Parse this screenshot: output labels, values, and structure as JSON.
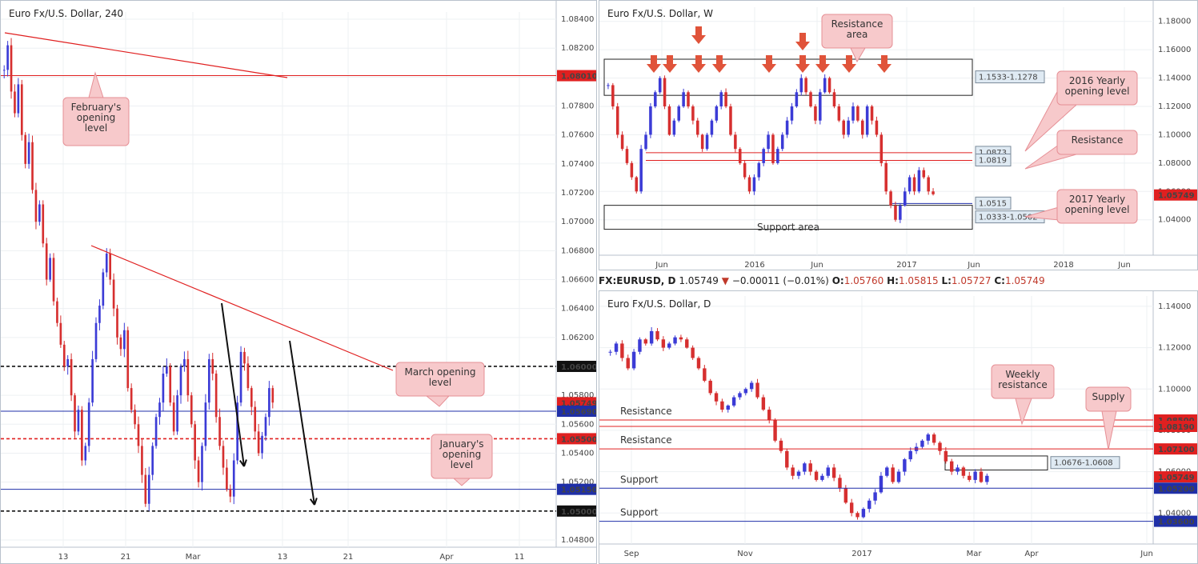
{
  "colors": {
    "bull": "#3b3bd6",
    "bear": "#d62f2f",
    "red_line": "#e02020",
    "blue_line": "#1f2fa8",
    "callout_fill": "#f7c9cb",
    "callout_stroke": "#e69096",
    "zone_fill": "#dfeaf3",
    "grid": "#edf0f3"
  },
  "infobar": {
    "symbol": "FX:EURUSD, D",
    "last": "1.05749",
    "change_arrow": "▼",
    "change": "−0.00011 (−0.01%)",
    "o_label": "O:",
    "o": "1.05760",
    "h_label": "H:",
    "h": "1.05815",
    "l_label": "L:",
    "l": "1.05727",
    "c_label": "C:",
    "c": "1.05749"
  },
  "chart_data": [
    {
      "id": "h4",
      "type": "candlestick",
      "title": "Euro Fx/U.S. Dollar, 240",
      "ylim": [
        1.0475,
        1.0845
      ],
      "y_ticks": [
        "1.08400",
        "1.08200",
        "1.08000",
        "1.07800",
        "1.07600",
        "1.07400",
        "1.07200",
        "1.07000",
        "1.06800",
        "1.06600",
        "1.06400",
        "1.06200",
        "1.06000",
        "1.05800",
        "1.05600",
        "1.05400",
        "1.05200",
        "1.05000",
        "1.04800"
      ],
      "x_ticks": [
        "13",
        "21",
        "Mar",
        "13",
        "21",
        "Apr",
        "11"
      ],
      "price_tags": [
        {
          "label": "1.08010",
          "value": 1.0801,
          "color": "#e02020"
        },
        {
          "label": "1.06000",
          "value": 1.06,
          "color": "#111111"
        },
        {
          "label": "1.05749",
          "value": 1.05749,
          "color": "#e02020"
        },
        {
          "label": "1.05690",
          "value": 1.0569,
          "color": "#1f2fa8"
        },
        {
          "label": "1.05500",
          "value": 1.055,
          "color": "#e02020"
        },
        {
          "label": "1.05150",
          "value": 1.0515,
          "color": "#1f2fa8"
        },
        {
          "label": "1.05000",
          "value": 1.05,
          "color": "#111111"
        }
      ],
      "levels": [
        {
          "value": 1.0801,
          "style": "solid",
          "color": "#e02020"
        },
        {
          "value": 1.06,
          "style": "dashed",
          "color": "#111111"
        },
        {
          "value": 1.0569,
          "style": "solid",
          "color": "#1f2fa8"
        },
        {
          "value": 1.055,
          "style": "dashed",
          "color": "#e02020"
        },
        {
          "value": 1.0515,
          "style": "solid",
          "color": "#1f2fa8"
        },
        {
          "value": 1.05,
          "style": "dashed",
          "color": "#111111"
        }
      ],
      "callouts": [
        "February's opening level",
        "March opening level",
        "January's opening level"
      ],
      "series": [
        1.0805,
        1.0822,
        1.079,
        1.0775,
        1.0795,
        1.076,
        1.074,
        1.0755,
        1.0722,
        1.07,
        1.0712,
        1.0685,
        1.066,
        1.0675,
        1.0645,
        1.063,
        1.0615,
        1.06,
        1.0605,
        1.058,
        1.0555,
        1.057,
        1.0535,
        1.0545,
        1.0575,
        1.0605,
        1.063,
        1.0642,
        1.0665,
        1.0678,
        1.066,
        1.064,
        1.062,
        1.0612,
        1.0625,
        1.0585,
        1.057,
        1.056,
        1.0545,
        1.0525,
        1.0505,
        1.0525,
        1.0545,
        1.0565,
        1.0575,
        1.0595,
        1.06,
        1.0575,
        1.0555,
        1.058,
        1.06,
        1.0605,
        1.058,
        1.056,
        1.0535,
        1.052,
        1.0545,
        1.0575,
        1.0605,
        1.0595,
        1.0565,
        1.0545,
        1.053,
        1.0515,
        1.051,
        1.0535,
        1.0575,
        1.061,
        1.0602,
        1.0585,
        1.0572,
        1.0555,
        1.054,
        1.0552,
        1.0565,
        1.0585,
        1.0575
      ],
      "annotations": [
        "Feb opening level",
        "trend line",
        "projection arrows"
      ]
    },
    {
      "id": "weekly",
      "type": "candlestick",
      "title": "Euro Fx/U.S. Dollar, W",
      "ylim": [
        1.015,
        1.19
      ],
      "y_ticks": [
        "1.18000",
        "1.16000",
        "1.14000",
        "1.12000",
        "1.10000",
        "1.08000",
        "1.06000",
        "1.04000"
      ],
      "x_ticks": [
        "Jun",
        "2016",
        "Jun",
        "2017",
        "Jun",
        "2018",
        "Jun"
      ],
      "price_tags": [
        {
          "label": "1.05749",
          "value": 1.05749,
          "color": "#e02020"
        }
      ],
      "zones": [
        {
          "label": "1.1533-1.1278",
          "high": 1.1533,
          "low": 1.1278
        },
        {
          "label": "1.0333-1.0502",
          "high": 1.0502,
          "low": 1.0333
        }
      ],
      "levels": [
        {
          "label": "1.0873",
          "value": 1.0873
        },
        {
          "label": "1.0819",
          "value": 1.0819
        },
        {
          "label": "1.0515",
          "value": 1.0515
        }
      ],
      "texts": [
        "Support area"
      ],
      "callouts": [
        "Resistance area",
        "2016 Yearly opening level",
        "Resistance",
        "2017 Yearly opening level"
      ],
      "series": [
        1.135,
        1.12,
        1.1,
        1.09,
        1.08,
        1.07,
        1.06,
        1.09,
        1.1,
        1.12,
        1.13,
        1.14,
        1.12,
        1.1,
        1.11,
        1.12,
        1.13,
        1.12,
        1.11,
        1.1,
        1.09,
        1.1,
        1.11,
        1.12,
        1.13,
        1.12,
        1.1,
        1.09,
        1.08,
        1.07,
        1.06,
        1.07,
        1.08,
        1.09,
        1.1,
        1.08,
        1.09,
        1.1,
        1.11,
        1.12,
        1.13,
        1.14,
        1.13,
        1.12,
        1.11,
        1.13,
        1.14,
        1.13,
        1.12,
        1.11,
        1.1,
        1.11,
        1.12,
        1.11,
        1.1,
        1.12,
        1.11,
        1.1,
        1.08,
        1.06,
        1.05,
        1.04,
        1.05,
        1.06,
        1.07,
        1.06,
        1.075,
        1.07,
        1.06,
        1.058
      ],
      "arrows": 10
    },
    {
      "id": "daily",
      "type": "candlestick",
      "title": "Euro Fx/U.S. Dollar, D",
      "ylim": [
        1.025,
        1.145
      ],
      "y_ticks": [
        "1.14000",
        "1.12000",
        "1.10000",
        "1.08000",
        "1.06000",
        "1.04000"
      ],
      "x_ticks": [
        "Sep",
        "Nov",
        "2017",
        "Mar",
        "Apr",
        "Jun"
      ],
      "price_tags": [
        {
          "label": "1.08500",
          "value": 1.085,
          "color": "#e02020"
        },
        {
          "label": "1.08190",
          "value": 1.0819,
          "color": "#e02020"
        },
        {
          "label": "1.07100",
          "value": 1.071,
          "color": "#e02020"
        },
        {
          "label": "1.05749",
          "value": 1.05749,
          "color": "#e02020"
        },
        {
          "label": "1.05200",
          "value": 1.052,
          "color": "#1f2fa8"
        },
        {
          "label": "1.03600",
          "value": 1.036,
          "color": "#1f2fa8"
        }
      ],
      "zones": [
        {
          "label": "1.0676-1.0608",
          "high": 1.0676,
          "low": 1.0608
        }
      ],
      "texts": [
        "Resistance",
        "Resistance",
        "Support",
        "Support"
      ],
      "callouts": [
        "Weekly resistance",
        "Supply"
      ],
      "series": [
        1.118,
        1.122,
        1.115,
        1.11,
        1.118,
        1.124,
        1.122,
        1.128,
        1.124,
        1.12,
        1.122,
        1.125,
        1.124,
        1.12,
        1.115,
        1.11,
        1.104,
        1.098,
        1.094,
        1.09,
        1.092,
        1.096,
        1.098,
        1.1,
        1.103,
        1.096,
        1.09,
        1.085,
        1.075,
        1.07,
        1.062,
        1.058,
        1.06,
        1.064,
        1.06,
        1.056,
        1.058,
        1.062,
        1.057,
        1.052,
        1.045,
        1.04,
        1.038,
        1.042,
        1.046,
        1.05,
        1.058,
        1.062,
        1.055,
        1.06,
        1.066,
        1.07,
        1.072,
        1.075,
        1.078,
        1.074,
        1.07,
        1.065,
        1.06,
        1.062,
        1.058,
        1.056,
        1.06,
        1.055,
        1.058
      ]
    }
  ]
}
